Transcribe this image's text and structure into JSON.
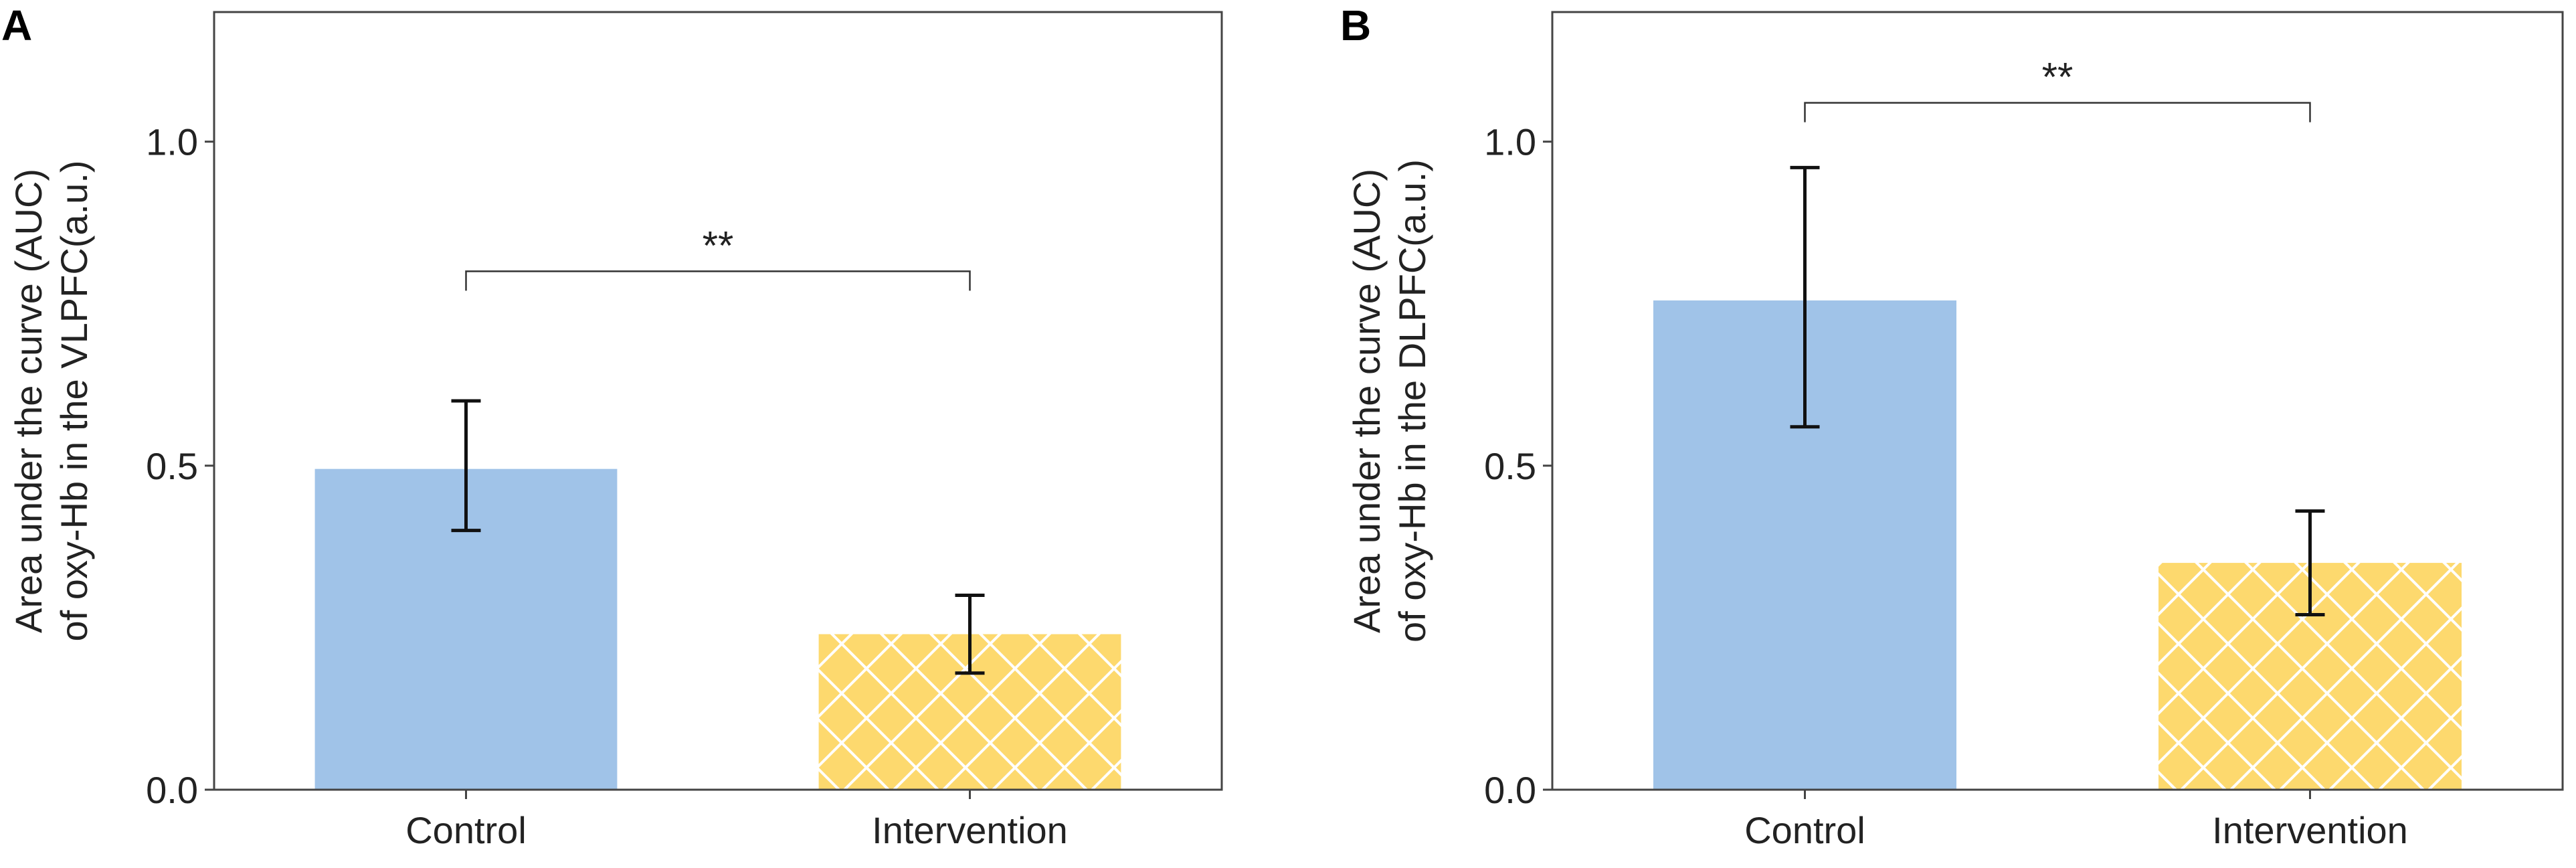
{
  "colors": {
    "control": "#a0c3e8",
    "intervention": "#fdd96e",
    "hatch": "#ffffff",
    "axis": "#444444",
    "errorbar": "#111111"
  },
  "chart_data": [
    {
      "panel_label": "A",
      "type": "bar",
      "categories": [
        "Control",
        "Intervention"
      ],
      "values": [
        0.495,
        0.24
      ],
      "errors": [
        [
          0.4,
          0.6
        ],
        [
          0.18,
          0.3
        ]
      ],
      "patterns": [
        "solid",
        "crosshatch"
      ],
      "ylabel_lines": [
        "Area under the curve (AUC)",
        "of oxy-Hb in the VLPFC(a.u.)"
      ],
      "ylim": [
        0,
        1.2
      ],
      "yticks": [
        0.0,
        0.5,
        1.0
      ],
      "ytick_labels": [
        "0.0",
        "0.5",
        "1.0"
      ],
      "significance": {
        "label": "**",
        "from": 0,
        "to": 1,
        "y": 0.8,
        "drop": 0.03
      }
    },
    {
      "panel_label": "B",
      "type": "bar",
      "categories": [
        "Control",
        "Intervention"
      ],
      "values": [
        0.755,
        0.35
      ],
      "errors": [
        [
          0.56,
          0.96
        ],
        [
          0.27,
          0.43
        ]
      ],
      "patterns": [
        "solid",
        "crosshatch"
      ],
      "ylabel_lines": [
        "Area under the curve (AUC)",
        "of oxy-Hb in the DLPFC(a.u.)"
      ],
      "ylim": [
        0,
        1.2
      ],
      "yticks": [
        0.0,
        0.5,
        1.0
      ],
      "ytick_labels": [
        "0.0",
        "0.5",
        "1.0"
      ],
      "significance": {
        "label": "**",
        "from": 0,
        "to": 1,
        "y": 1.06,
        "drop": 0.03
      }
    }
  ]
}
